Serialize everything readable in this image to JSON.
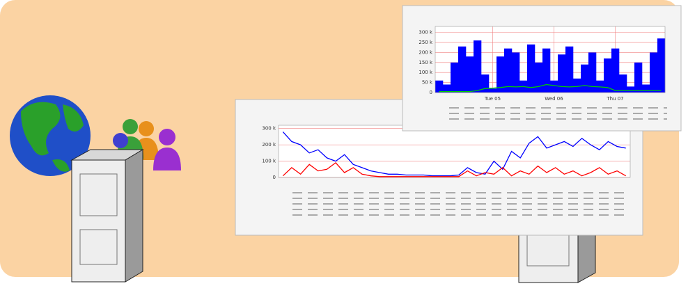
{
  "chart_data": [
    {
      "type": "area",
      "ylim": [
        0,
        330
      ],
      "yticks": [
        {
          "value": 0,
          "label": "0"
        },
        {
          "value": 50,
          "label": "50 k"
        },
        {
          "value": 100,
          "label": "100 k"
        },
        {
          "value": 150,
          "label": "150 k"
        },
        {
          "value": 200,
          "label": "200 k"
        },
        {
          "value": 250,
          "label": "250 k"
        },
        {
          "value": 300,
          "label": "300 k"
        }
      ],
      "categories": [
        null,
        null,
        null,
        null,
        null,
        null,
        null,
        "Tue 05",
        null,
        null,
        null,
        null,
        null,
        null,
        null,
        "Wed 06",
        null,
        null,
        null,
        null,
        null,
        null,
        null,
        "Thu 07",
        null,
        null,
        null,
        null,
        null,
        null
      ],
      "grid": true,
      "series": [
        {
          "color": "#0000ff",
          "style": "area",
          "values": [
            60,
            40,
            150,
            230,
            180,
            260,
            90,
            20,
            180,
            220,
            200,
            60,
            240,
            150,
            220,
            60,
            190,
            230,
            70,
            140,
            200,
            60,
            170,
            220,
            90,
            30,
            150,
            40,
            200,
            270
          ]
        },
        {
          "color": "#00cc00",
          "style": "line",
          "values": [
            5,
            5,
            5,
            5,
            5,
            10,
            20,
            22,
            25,
            30,
            28,
            30,
            25,
            30,
            40,
            35,
            30,
            28,
            30,
            35,
            30,
            28,
            25,
            10,
            10,
            10,
            10,
            10,
            10,
            10
          ]
        }
      ]
    },
    {
      "type": "line",
      "ylim": [
        0,
        320
      ],
      "yticks": [
        {
          "value": 0,
          "label": "0"
        },
        {
          "value": 100,
          "label": "100 k"
        },
        {
          "value": 200,
          "label": "200 k"
        },
        {
          "value": 300,
          "label": "300 k"
        }
      ],
      "grid": true,
      "series": [
        {
          "color": "#0000ff",
          "style": "line",
          "values": [
            280,
            220,
            200,
            150,
            170,
            120,
            100,
            140,
            80,
            60,
            40,
            30,
            20,
            20,
            15,
            15,
            15,
            10,
            10,
            10,
            15,
            60,
            30,
            20,
            100,
            50,
            160,
            120,
            210,
            250,
            180,
            200,
            220,
            190,
            240,
            200,
            170,
            220,
            190,
            180
          ]
        },
        {
          "color": "#ff0000",
          "style": "line",
          "values": [
            10,
            60,
            20,
            80,
            40,
            50,
            90,
            30,
            60,
            20,
            10,
            5,
            5,
            5,
            5,
            5,
            5,
            5,
            5,
            5,
            5,
            40,
            10,
            30,
            20,
            60,
            10,
            40,
            20,
            70,
            30,
            60,
            20,
            40,
            10,
            30,
            60,
            20,
            40,
            10
          ]
        }
      ]
    }
  ]
}
